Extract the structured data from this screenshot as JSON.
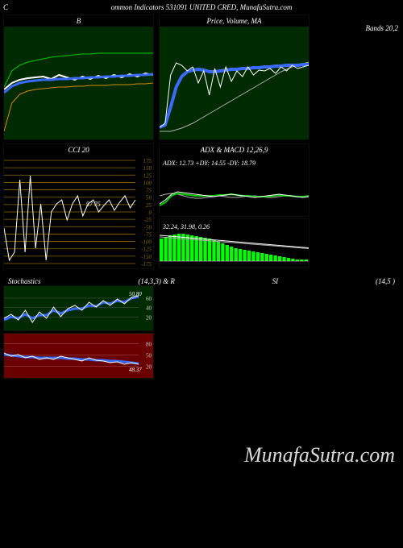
{
  "header": {
    "left": "C",
    "center": "ommon Indicators 531091 UNITED CRED, MunafaSutra.com"
  },
  "watermark": "MunafaSutra.com",
  "bands_label": "Bands 20,2",
  "panels": {
    "bollinger": {
      "title": "B",
      "width": 185,
      "height": 140,
      "bg": "#002a00",
      "series": {
        "upper": {
          "color": "#00c800",
          "points": [
            75,
            55,
            48,
            44,
            42,
            40,
            38,
            37,
            36,
            35,
            34,
            34,
            33,
            33,
            33,
            33,
            33,
            33,
            33,
            33
          ]
        },
        "mid1": {
          "color": "#ffffff",
          "width": 2,
          "points": [
            78,
            70,
            66,
            64,
            63,
            62,
            65,
            60,
            63,
            66,
            62,
            65,
            61,
            64,
            60,
            63,
            59,
            62,
            58,
            60
          ]
        },
        "mid2": {
          "color": "#3a6aff",
          "width": 3,
          "points": [
            82,
            74,
            70,
            68,
            67,
            66,
            66,
            65,
            65,
            64,
            64,
            63,
            63,
            62,
            62,
            61,
            61,
            60,
            60,
            59
          ]
        },
        "lower": {
          "color": "#d88a00",
          "points": [
            130,
            95,
            84,
            80,
            78,
            77,
            76,
            75,
            75,
            74,
            74,
            73,
            73,
            73,
            72,
            72,
            72,
            71,
            71,
            70
          ]
        }
      }
    },
    "price_ma": {
      "title": "Price,  Volume,  MA",
      "width": 185,
      "height": 140,
      "bg": "#002a00",
      "series": {
        "price": {
          "color": "#ffffff",
          "points": [
            125,
            120,
            60,
            45,
            48,
            55,
            50,
            70,
            55,
            85,
            52,
            75,
            50,
            68,
            55,
            62,
            50,
            60,
            54,
            55,
            52,
            58,
            50,
            55,
            48,
            52,
            50,
            48
          ]
        },
        "ma_thick": {
          "color": "#3a6aff",
          "width": 4,
          "points": [
            125,
            122,
            100,
            75,
            62,
            56,
            54,
            53,
            54,
            56,
            56,
            55,
            54,
            53,
            53,
            52,
            52,
            51,
            51,
            50,
            50,
            49,
            49,
            48,
            48,
            48,
            47,
            47
          ]
        },
        "ma_thin": {
          "color": "#b0b0b0",
          "points": [
            130,
            130,
            130,
            128,
            126,
            123,
            120,
            116,
            112,
            108,
            104,
            100,
            96,
            92,
            88,
            84,
            80,
            76,
            72,
            68,
            64,
            60,
            56,
            53,
            50,
            48,
            46,
            44
          ]
        }
      }
    },
    "cci": {
      "title": "CCI 20",
      "width": 185,
      "height": 140,
      "bg": "#000",
      "grid_color": "#8a6a00",
      "y_labels": [
        175,
        150,
        125,
        100,
        75,
        50,
        25,
        0,
        -25,
        -50,
        -75,
        -100,
        -125,
        -150,
        -175
      ],
      "mid_label": "57  75",
      "series": {
        "line": {
          "color": "#ffffff",
          "points": [
            90,
            130,
            120,
            30,
            120,
            25,
            115,
            60,
            130,
            70,
            60,
            55,
            80,
            60,
            50,
            75,
            60,
            55,
            70,
            62,
            55,
            68,
            58,
            50,
            65,
            55
          ]
        }
      }
    },
    "adx": {
      "title": "ADX  & MACD 12,26,9",
      "width": 185,
      "height": 75,
      "bg": "#000",
      "text": "ADX: 12.73 +DY: 14.55 -DY: 18.79",
      "series": {
        "adx_line": {
          "color": "#ffffff",
          "points": [
            60,
            55,
            48,
            45,
            46,
            47,
            48,
            49,
            50,
            51,
            50,
            49,
            48,
            49,
            50,
            51,
            52,
            51,
            50,
            49,
            48,
            49,
            50,
            51,
            52,
            51
          ]
        },
        "plus_dy": {
          "color": "#00c800",
          "width": 2,
          "points": [
            62,
            58,
            50,
            47,
            48,
            49,
            50,
            50,
            50,
            50,
            49,
            49,
            48,
            49,
            50,
            50,
            51,
            51,
            51,
            50,
            49,
            50,
            50,
            51,
            51,
            50
          ]
        },
        "minus_dy": {
          "color": "#b0b0b0",
          "points": [
            50,
            48,
            47,
            48,
            50,
            52,
            53,
            53,
            52,
            51,
            50,
            51,
            52,
            52,
            51,
            50,
            50,
            51,
            52,
            52,
            51,
            50,
            50,
            51,
            51,
            50
          ]
        }
      }
    },
    "macd": {
      "width": 185,
      "height": 60,
      "bg": "#000",
      "text": "32.24,  31.98,  0.26",
      "hist_color": "#00ff00",
      "hist": [
        28,
        30,
        32,
        33,
        34,
        34,
        33,
        32,
        31,
        30,
        29,
        28,
        26,
        24,
        22,
        20,
        18,
        16,
        15,
        14,
        13,
        12,
        11,
        10,
        9,
        8,
        7,
        6,
        5,
        4,
        3,
        2,
        2,
        2
      ],
      "line1": {
        "color": "#ffffff",
        "base": 20,
        "slope": 0.7
      },
      "line2": {
        "color": "#b0b0b0",
        "base": 22,
        "slope": 0.65
      }
    },
    "stoch_title_left": "Stochastics",
    "stoch_title_mid": "(14,3,3) & R",
    "stoch_title_r": "SI",
    "stoch_title_right": "(14,5                                )",
    "stoch": {
      "width": 185,
      "height": 55,
      "bg": "#002a00",
      "label": "50.80",
      "grid": [
        20,
        40,
        60
      ],
      "series": {
        "k": {
          "color": "#ffffff",
          "points": [
            40,
            35,
            42,
            30,
            45,
            32,
            40,
            26,
            38,
            28,
            24,
            30,
            20,
            26,
            18,
            24,
            16,
            22,
            14,
            12
          ]
        },
        "d": {
          "color": "#3a6aff",
          "width": 3,
          "points": [
            42,
            38,
            40,
            35,
            40,
            36,
            36,
            30,
            34,
            30,
            28,
            28,
            24,
            25,
            20,
            22,
            18,
            20,
            15,
            13
          ]
        }
      }
    },
    "rsi": {
      "width": 185,
      "height": 55,
      "bg": "#6a0000",
      "label": "48.37",
      "grid": [
        20,
        50,
        80
      ],
      "series": {
        "rsi_line": {
          "color": "#ffffff",
          "points": [
            24,
            28,
            26,
            30,
            28,
            32,
            30,
            32,
            28,
            30,
            32,
            34,
            30,
            33,
            34,
            36,
            35,
            38,
            36,
            38
          ]
        },
        "rsi_ma": {
          "color": "#3a6aff",
          "width": 3,
          "points": [
            26,
            27,
            28,
            29,
            29,
            30,
            30,
            30,
            30,
            31,
            31,
            32,
            32,
            33,
            33,
            34,
            34,
            35,
            36,
            37
          ]
        }
      }
    }
  }
}
